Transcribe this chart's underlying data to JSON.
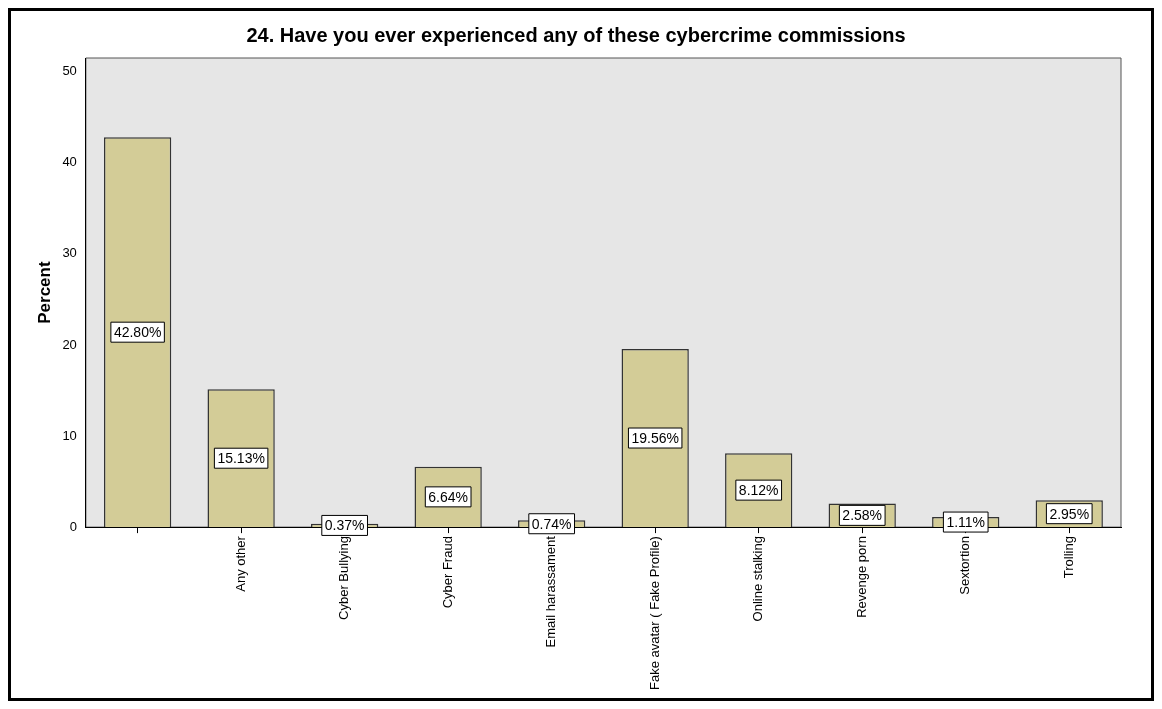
{
  "chart_data": {
    "type": "bar",
    "title": "24. Have you ever experienced any of these cybercrime commissions",
    "ylabel": "Percent",
    "categories": [
      null,
      "Any other",
      "Cyber Bullying",
      "Cyber Fraud",
      "Email harassament",
      "Fake avatar ( Fake Profile)",
      "Online stalking",
      "Revenge porn",
      "Sextortion",
      "Trolling"
    ],
    "values": [
      42.8,
      15.13,
      0.37,
      6.64,
      0.74,
      19.56,
      8.12,
      2.58,
      1.11,
      2.95
    ],
    "value_labels": [
      "42.80%",
      "15.13%",
      "0.37%",
      "6.64%",
      "0.74%",
      "19.56%",
      "8.12%",
      "2.58%",
      "1.11%",
      "2.95%"
    ],
    "color": "#d3cc97",
    "ylim": [
      0,
      51.5
    ],
    "yticks": [
      0,
      10,
      20,
      30,
      40,
      50
    ],
    "grid": false,
    "legend": false
  }
}
